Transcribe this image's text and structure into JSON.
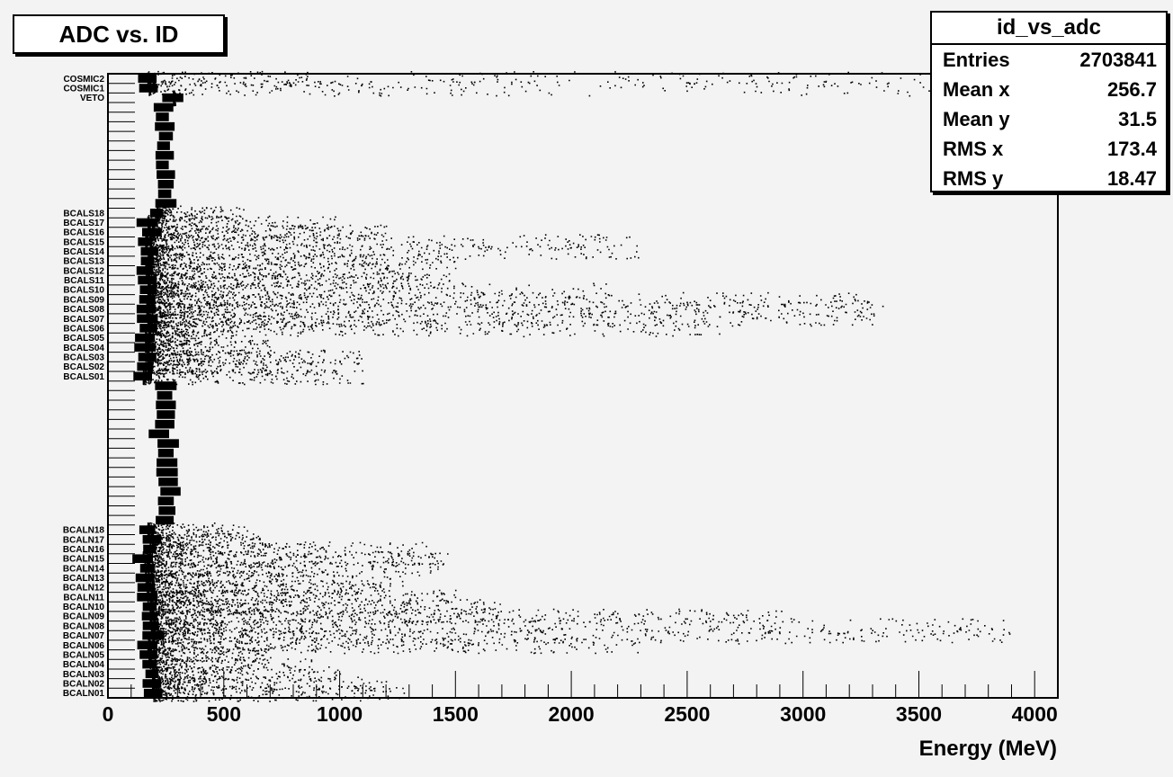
{
  "chart_data": {
    "type": "scatter",
    "title": "ADC vs. ID",
    "xlabel": "Energy (MeV)",
    "xlim": [
      0,
      4100
    ],
    "x_ticks": [
      0,
      500,
      1000,
      1500,
      2000,
      2500,
      3000,
      3500,
      4000
    ],
    "channels_top_to_bottom": [
      "COSMIC2",
      "COSMIC1",
      "VETO",
      "",
      "",
      "",
      "",
      "",
      "",
      "",
      "",
      "",
      "",
      "",
      "BCALS18",
      "BCALS17",
      "BCALS16",
      "BCALS15",
      "BCALS14",
      "BCALS13",
      "BCALS12",
      "BCALS11",
      "BCALS10",
      "BCALS09",
      "BCALS08",
      "BCALS07",
      "BCALS06",
      "BCALS05",
      "BCALS04",
      "BCALS03",
      "BCALS02",
      "BCALS01",
      "",
      "",
      "",
      "",
      "",
      "",
      "",
      "",
      "",
      "",
      "",
      "",
      "",
      "",
      "",
      "BCALN18",
      "BCALN17",
      "BCALN16",
      "BCALN15",
      "BCALN14",
      "BCALN13",
      "BCALN12",
      "BCALN11",
      "BCALN10",
      "BCALN09",
      "BCALN08",
      "BCALN07",
      "BCALN06",
      "BCALN05",
      "BCALN04",
      "BCALN03",
      "BCALN02",
      "BCALN01"
    ],
    "channel_peak_energy_MeV": [
      170,
      175,
      280,
      240,
      235,
      245,
      250,
      240,
      245,
      235,
      250,
      250,
      245,
      250,
      210,
      170,
      190,
      160,
      180,
      170,
      160,
      170,
      175,
      170,
      165,
      170,
      175,
      160,
      160,
      170,
      160,
      150,
      250,
      245,
      250,
      250,
      245,
      220,
      260,
      250,
      255,
      255,
      260,
      270,
      250,
      255,
      245,
      170,
      190,
      180,
      150,
      170,
      160,
      165,
      170,
      180,
      180,
      185,
      195,
      170,
      175,
      180,
      190,
      190,
      195
    ],
    "channel_max_energy_MeV": [
      3900,
      3700,
      290,
      0,
      0,
      0,
      0,
      0,
      0,
      0,
      0,
      0,
      0,
      0,
      600,
      1000,
      1200,
      2250,
      2300,
      1500,
      1300,
      1500,
      2200,
      3300,
      3350,
      3300,
      2700,
      550,
      700,
      1100,
      1000,
      1100,
      0,
      0,
      0,
      0,
      0,
      0,
      0,
      0,
      0,
      0,
      0,
      0,
      0,
      0,
      0,
      600,
      700,
      1400,
      1500,
      1450,
      1300,
      1200,
      1500,
      1700,
      3000,
      3900,
      3900,
      2300,
      700,
      900,
      1000,
      1200,
      1300
    ],
    "channel_density": [
      0.45,
      0.35,
      0.05,
      0,
      0,
      0,
      0,
      0,
      0,
      0,
      0,
      0,
      0,
      0,
      0.2,
      0.3,
      0.5,
      0.6,
      0.55,
      0.6,
      0.55,
      0.7,
      0.7,
      0.9,
      1.0,
      0.95,
      0.7,
      0.35,
      0.3,
      0.45,
      0.4,
      0.35,
      0,
      0,
      0,
      0,
      0,
      0,
      0,
      0,
      0,
      0,
      0,
      0,
      0,
      0,
      0,
      0.25,
      0.3,
      0.5,
      0.55,
      0.6,
      0.5,
      0.55,
      0.7,
      0.8,
      0.95,
      1.0,
      0.95,
      0.7,
      0.35,
      0.3,
      0.35,
      0.4,
      0.45
    ]
  },
  "stats": {
    "name": "id_vs_adc",
    "rows": [
      {
        "label": "Entries",
        "value": "2703841"
      },
      {
        "label": "Mean x",
        "value": "256.7"
      },
      {
        "label": "Mean y",
        "value": "31.5"
      },
      {
        "label": "RMS x",
        "value": "173.4"
      },
      {
        "label": "RMS y",
        "value": "18.47"
      }
    ]
  }
}
